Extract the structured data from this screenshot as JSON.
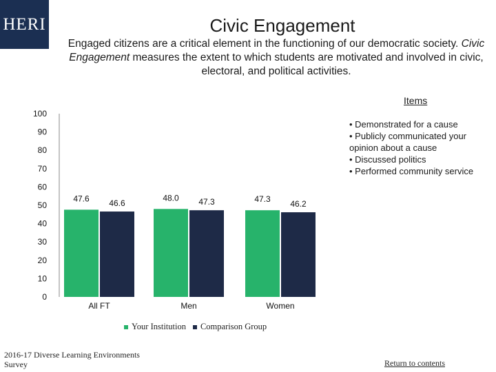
{
  "logo": {
    "text": "HERI"
  },
  "header": {
    "title": "Civic Engagement",
    "description_intro": "Engaged citizens are a critical element in the functioning of our democratic society.",
    "description_em": "Civic Engagement",
    "description_rest": "measures the extent to which students are motivated and involved in civic, electoral, and political activities."
  },
  "items": {
    "link_label": "Items",
    "list": [
      "• Demonstrated for a cause",
      "• Publicly communicated your opinion about a cause",
      "• Discussed politics",
      "• Performed community service"
    ]
  },
  "colors": {
    "your_institution": "#27b36b",
    "comparison_group": "#1e2a47",
    "axis": "#888888"
  },
  "chart_data": {
    "type": "bar",
    "categories": [
      "All FT",
      "Men",
      "Women"
    ],
    "series": [
      {
        "name": "Your Institution",
        "values": [
          47.6,
          48.0,
          47.3
        ]
      },
      {
        "name": "Comparison Group",
        "values": [
          46.6,
          47.3,
          46.2
        ]
      }
    ],
    "data_labels": [
      [
        "47.6",
        "46.6"
      ],
      [
        "48.0",
        "47.3"
      ],
      [
        "47.3",
        "46.2"
      ]
    ],
    "y_ticks": [
      "0",
      "10",
      "20",
      "30",
      "40",
      "50",
      "60",
      "70",
      "80",
      "90",
      "100"
    ],
    "ylim": [
      0,
      100
    ],
    "title": "",
    "xlabel": "",
    "ylabel": ""
  },
  "legend": {
    "your_institution": "Your Institution",
    "comparison_group": "Comparison Group"
  },
  "footer": {
    "source": "2016-17 Diverse Learning Environments Survey",
    "return_link": "Return to contents"
  }
}
